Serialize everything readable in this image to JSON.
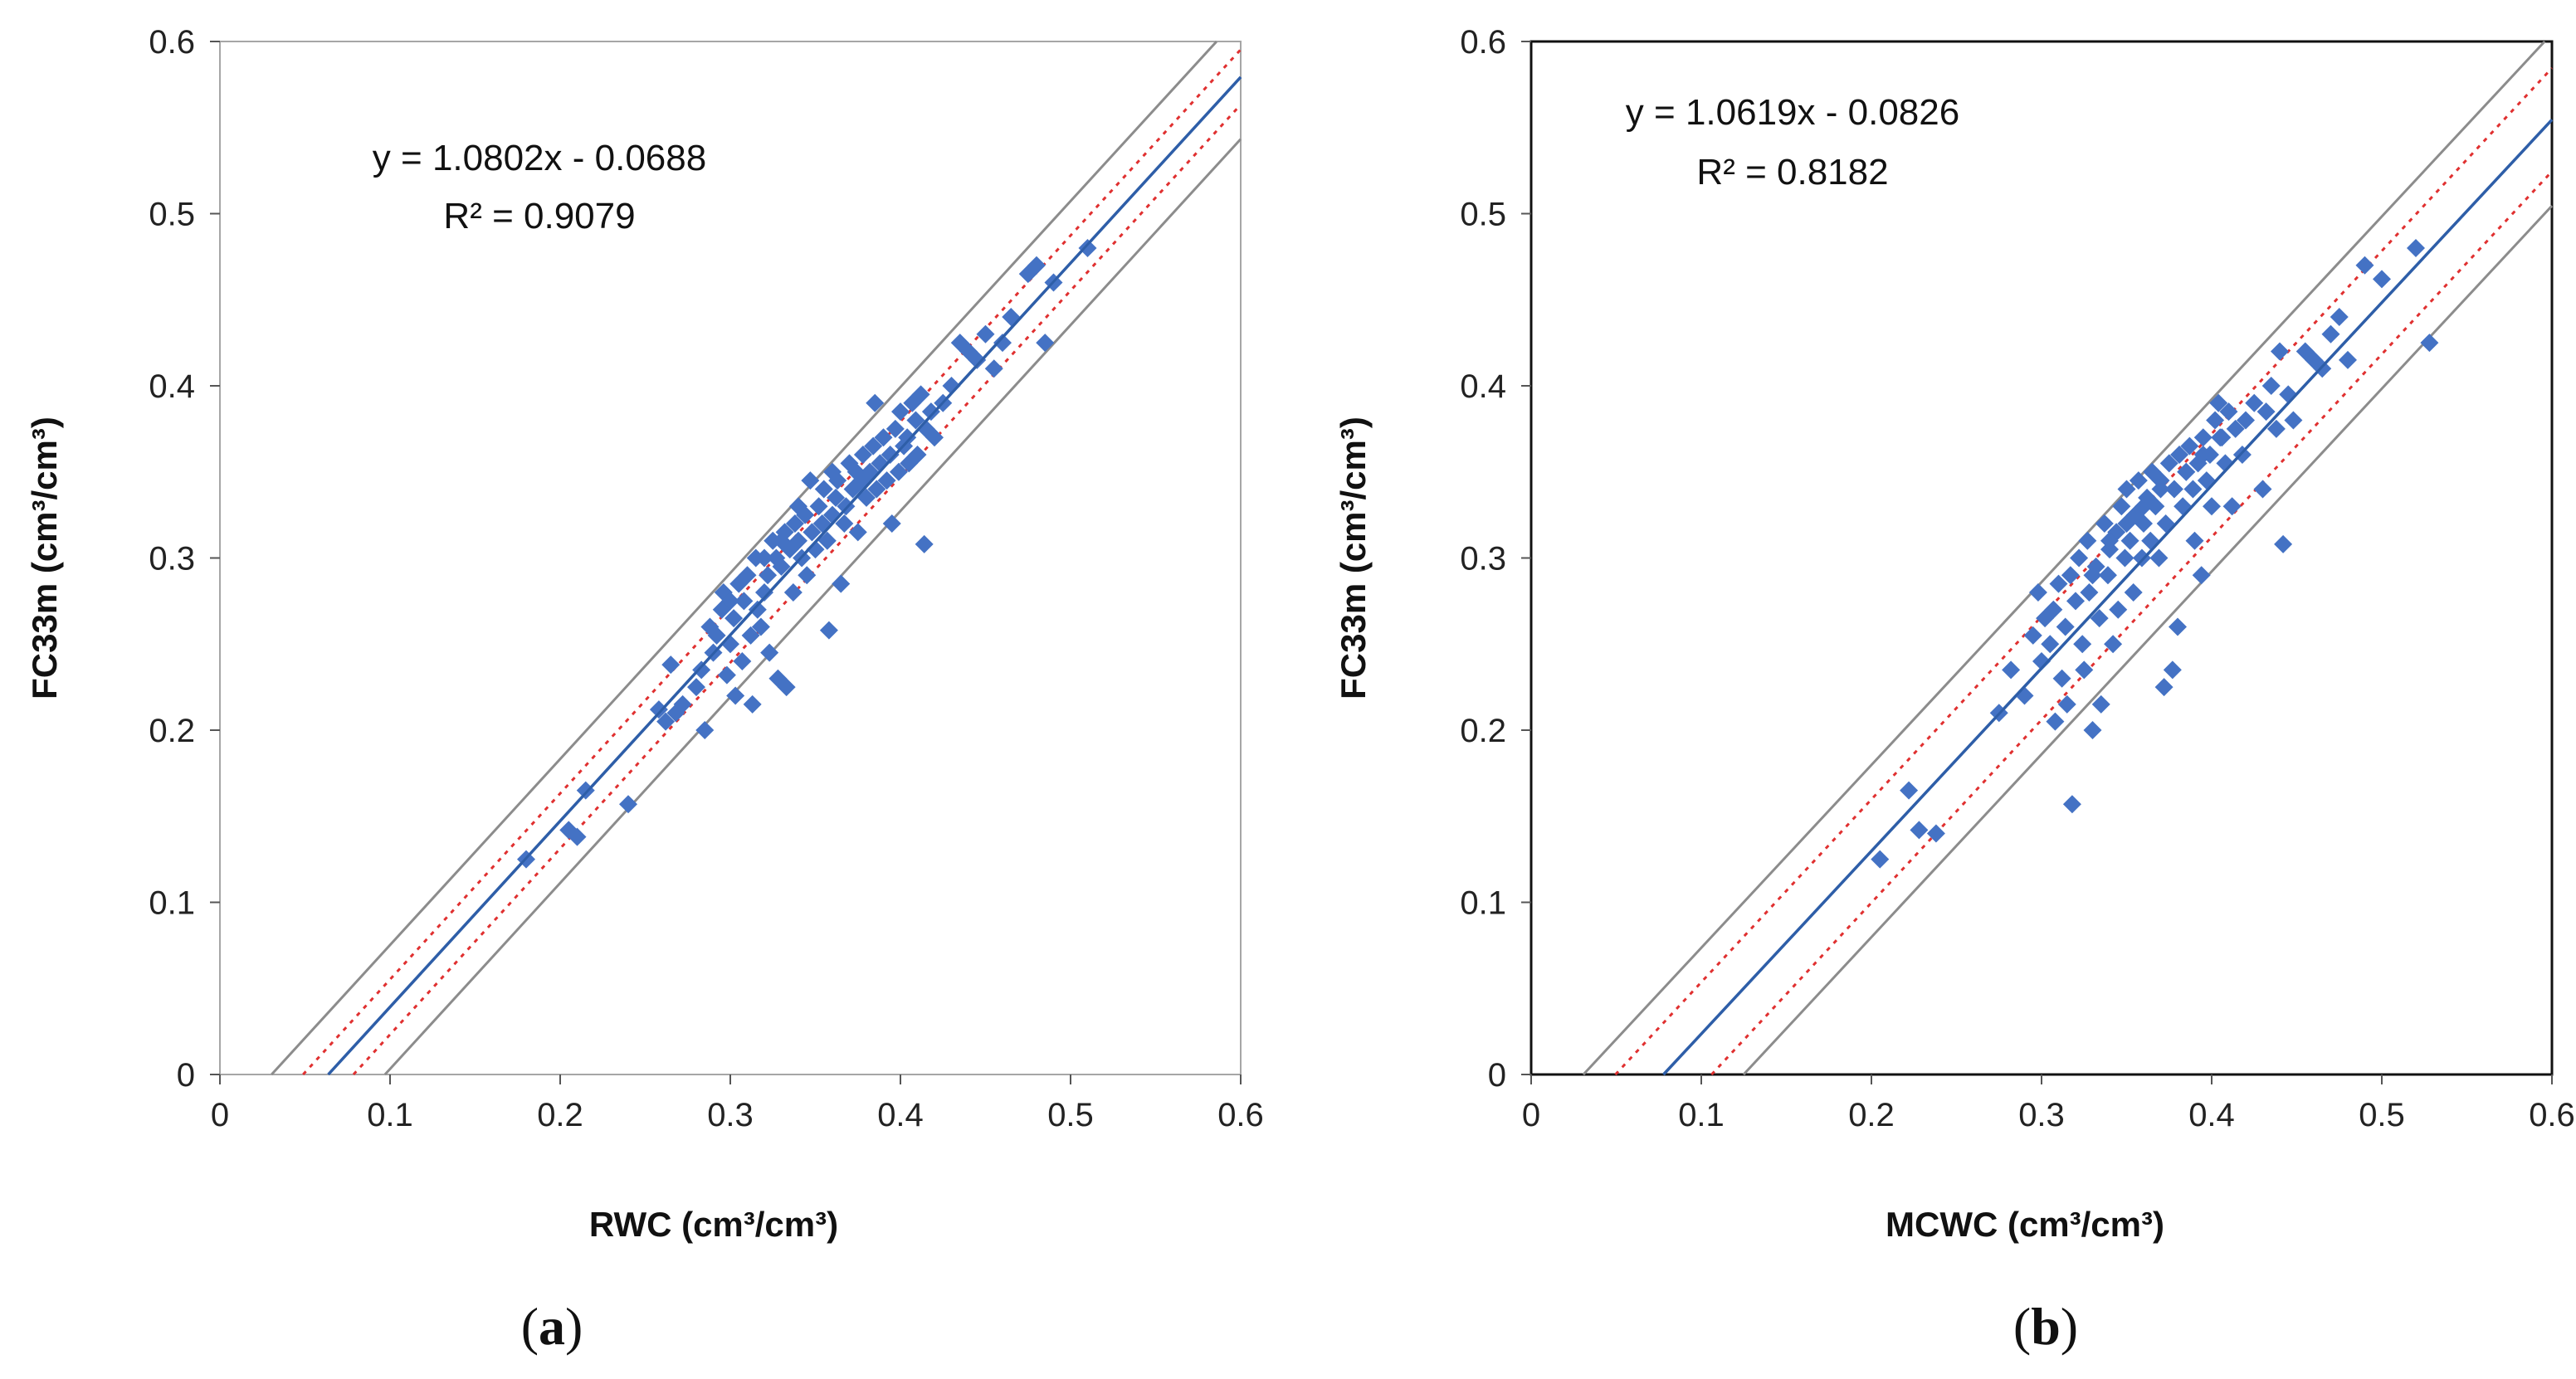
{
  "chart_data": [
    {
      "type": "scatter",
      "panel_label": {
        "open": "(",
        "letter": "a",
        "close": ")"
      },
      "xlabel": "RWC (cm³/cm³)",
      "ylabel": "FC33m (cm³/cm³)",
      "xlim": [
        0,
        0.6
      ],
      "ylim": [
        0,
        0.6
      ],
      "xticks": [
        "0",
        "0.1",
        "0.2",
        "0.3",
        "0.4",
        "0.5",
        "0.6"
      ],
      "yticks": [
        "0",
        "0.1",
        "0.2",
        "0.3",
        "0.4",
        "0.5",
        "0.6"
      ],
      "equation": "y = 1.0802x - 0.0688",
      "r_squared": "R² = 0.9079",
      "fit": {
        "slope": 1.0802,
        "intercept": -0.0688
      },
      "prediction_offset": 0.036,
      "confidence_offset": [
        0.016,
        0.004
      ],
      "series_color": "#4472C4",
      "fit_color": "#2E5EA8",
      "conf_color": "#E03030",
      "pred_color": "#8C8C8C",
      "frame_color": "#A6A6A6",
      "points": [
        [
          0.18,
          0.125
        ],
        [
          0.205,
          0.142
        ],
        [
          0.21,
          0.138
        ],
        [
          0.215,
          0.165
        ],
        [
          0.24,
          0.157
        ],
        [
          0.258,
          0.212
        ],
        [
          0.262,
          0.205
        ],
        [
          0.265,
          0.238
        ],
        [
          0.268,
          0.21
        ],
        [
          0.272,
          0.215
        ],
        [
          0.28,
          0.225
        ],
        [
          0.283,
          0.235
        ],
        [
          0.285,
          0.2
        ],
        [
          0.288,
          0.26
        ],
        [
          0.29,
          0.245
        ],
        [
          0.292,
          0.255
        ],
        [
          0.295,
          0.27
        ],
        [
          0.296,
          0.28
        ],
        [
          0.298,
          0.232
        ],
        [
          0.3,
          0.25
        ],
        [
          0.302,
          0.265
        ],
        [
          0.303,
          0.22
        ],
        [
          0.305,
          0.285
        ],
        [
          0.307,
          0.24
        ],
        [
          0.308,
          0.275
        ],
        [
          0.31,
          0.29
        ],
        [
          0.312,
          0.255
        ],
        [
          0.313,
          0.215
        ],
        [
          0.315,
          0.3
        ],
        [
          0.316,
          0.27
        ],
        [
          0.318,
          0.26
        ],
        [
          0.32,
          0.28
        ],
        [
          0.322,
          0.29
        ],
        [
          0.323,
          0.245
        ],
        [
          0.325,
          0.31
        ],
        [
          0.327,
          0.3
        ],
        [
          0.328,
          0.23
        ],
        [
          0.33,
          0.295
        ],
        [
          0.332,
          0.315
        ],
        [
          0.333,
          0.225
        ],
        [
          0.335,
          0.305
        ],
        [
          0.337,
          0.28
        ],
        [
          0.338,
          0.32
        ],
        [
          0.34,
          0.31
        ],
        [
          0.342,
          0.3
        ],
        [
          0.344,
          0.325
        ],
        [
          0.345,
          0.29
        ],
        [
          0.347,
          0.345
        ],
        [
          0.348,
          0.315
        ],
        [
          0.35,
          0.305
        ],
        [
          0.352,
          0.33
        ],
        [
          0.354,
          0.32
        ],
        [
          0.355,
          0.34
        ],
        [
          0.357,
          0.31
        ],
        [
          0.358,
          0.258
        ],
        [
          0.36,
          0.325
        ],
        [
          0.362,
          0.335
        ],
        [
          0.363,
          0.345
        ],
        [
          0.365,
          0.285
        ],
        [
          0.367,
          0.32
        ],
        [
          0.368,
          0.33
        ],
        [
          0.37,
          0.355
        ],
        [
          0.372,
          0.34
        ],
        [
          0.374,
          0.35
        ],
        [
          0.375,
          0.315
        ],
        [
          0.377,
          0.345
        ],
        [
          0.378,
          0.36
        ],
        [
          0.38,
          0.335
        ],
        [
          0.382,
          0.35
        ],
        [
          0.384,
          0.365
        ],
        [
          0.386,
          0.34
        ],
        [
          0.388,
          0.355
        ],
        [
          0.39,
          0.37
        ],
        [
          0.392,
          0.345
        ],
        [
          0.394,
          0.36
        ],
        [
          0.395,
          0.32
        ],
        [
          0.397,
          0.375
        ],
        [
          0.399,
          0.35
        ],
        [
          0.4,
          0.385
        ],
        [
          0.402,
          0.365
        ],
        [
          0.404,
          0.37
        ],
        [
          0.405,
          0.355
        ],
        [
          0.407,
          0.39
        ],
        [
          0.409,
          0.38
        ],
        [
          0.41,
          0.36
        ],
        [
          0.412,
          0.395
        ],
        [
          0.414,
          0.308
        ],
        [
          0.415,
          0.375
        ],
        [
          0.418,
          0.385
        ],
        [
          0.42,
          0.37
        ],
        [
          0.425,
          0.39
        ],
        [
          0.43,
          0.4
        ],
        [
          0.435,
          0.425
        ],
        [
          0.44,
          0.42
        ],
        [
          0.445,
          0.415
        ],
        [
          0.45,
          0.43
        ],
        [
          0.455,
          0.41
        ],
        [
          0.46,
          0.425
        ],
        [
          0.465,
          0.44
        ],
        [
          0.475,
          0.465
        ],
        [
          0.48,
          0.47
        ],
        [
          0.485,
          0.425
        ],
        [
          0.49,
          0.46
        ],
        [
          0.51,
          0.48
        ],
        [
          0.385,
          0.39
        ],
        [
          0.36,
          0.35
        ],
        [
          0.34,
          0.33
        ],
        [
          0.32,
          0.3
        ],
        [
          0.3,
          0.275
        ],
        [
          0.33,
          0.31
        ]
      ]
    },
    {
      "type": "scatter",
      "panel_label": {
        "open": "(",
        "letter": "b",
        "close": ")"
      },
      "xlabel": "MCWC (cm³/cm³)",
      "ylabel": "FC33m (cm³/cm³)",
      "xlim": [
        0,
        0.6
      ],
      "ylim": [
        0,
        0.6
      ],
      "xticks": [
        "0",
        "0.1",
        "0.2",
        "0.3",
        "0.4",
        "0.5",
        "0.6"
      ],
      "yticks": [
        "0",
        "0.1",
        "0.2",
        "0.3",
        "0.4",
        "0.5",
        "0.6"
      ],
      "equation": "y = 1.0619x - 0.0826",
      "r_squared": "R² = 0.8182",
      "fit": {
        "slope": 1.0619,
        "intercept": -0.0826
      },
      "prediction_offset": 0.05,
      "confidence_offset": [
        0.03,
        0.02
      ],
      "series_color": "#4472C4",
      "fit_color": "#2E5EA8",
      "conf_color": "#E03030",
      "pred_color": "#8C8C8C",
      "frame_color": "#111111",
      "points": [
        [
          0.205,
          0.125
        ],
        [
          0.222,
          0.165
        ],
        [
          0.228,
          0.142
        ],
        [
          0.238,
          0.14
        ],
        [
          0.275,
          0.21
        ],
        [
          0.282,
          0.235
        ],
        [
          0.29,
          0.22
        ],
        [
          0.295,
          0.255
        ],
        [
          0.298,
          0.28
        ],
        [
          0.3,
          0.24
        ],
        [
          0.302,
          0.265
        ],
        [
          0.305,
          0.25
        ],
        [
          0.307,
          0.27
        ],
        [
          0.308,
          0.205
        ],
        [
          0.31,
          0.285
        ],
        [
          0.312,
          0.23
        ],
        [
          0.314,
          0.26
        ],
        [
          0.315,
          0.215
        ],
        [
          0.317,
          0.29
        ],
        [
          0.318,
          0.157
        ],
        [
          0.32,
          0.275
        ],
        [
          0.322,
          0.3
        ],
        [
          0.324,
          0.25
        ],
        [
          0.325,
          0.235
        ],
        [
          0.327,
          0.31
        ],
        [
          0.328,
          0.28
        ],
        [
          0.33,
          0.2
        ],
        [
          0.332,
          0.295
        ],
        [
          0.334,
          0.265
        ],
        [
          0.335,
          0.215
        ],
        [
          0.337,
          0.32
        ],
        [
          0.339,
          0.29
        ],
        [
          0.34,
          0.305
        ],
        [
          0.342,
          0.25
        ],
        [
          0.344,
          0.315
        ],
        [
          0.345,
          0.27
        ],
        [
          0.347,
          0.33
        ],
        [
          0.349,
          0.3
        ],
        [
          0.35,
          0.34
        ],
        [
          0.352,
          0.31
        ],
        [
          0.354,
          0.28
        ],
        [
          0.355,
          0.325
        ],
        [
          0.357,
          0.345
        ],
        [
          0.359,
          0.3
        ],
        [
          0.36,
          0.32
        ],
        [
          0.362,
          0.335
        ],
        [
          0.364,
          0.31
        ],
        [
          0.365,
          0.35
        ],
        [
          0.367,
          0.33
        ],
        [
          0.369,
          0.3
        ],
        [
          0.37,
          0.345
        ],
        [
          0.372,
          0.225
        ],
        [
          0.373,
          0.32
        ],
        [
          0.375,
          0.355
        ],
        [
          0.377,
          0.235
        ],
        [
          0.378,
          0.34
        ],
        [
          0.38,
          0.26
        ],
        [
          0.381,
          0.36
        ],
        [
          0.383,
          0.33
        ],
        [
          0.385,
          0.35
        ],
        [
          0.387,
          0.365
        ],
        [
          0.389,
          0.34
        ],
        [
          0.39,
          0.31
        ],
        [
          0.392,
          0.355
        ],
        [
          0.394,
          0.29
        ],
        [
          0.395,
          0.37
        ],
        [
          0.397,
          0.345
        ],
        [
          0.399,
          0.36
        ],
        [
          0.4,
          0.33
        ],
        [
          0.402,
          0.38
        ],
        [
          0.404,
          0.39
        ],
        [
          0.406,
          0.37
        ],
        [
          0.408,
          0.355
        ],
        [
          0.41,
          0.385
        ],
        [
          0.412,
          0.33
        ],
        [
          0.414,
          0.375
        ],
        [
          0.418,
          0.36
        ],
        [
          0.42,
          0.38
        ],
        [
          0.425,
          0.39
        ],
        [
          0.43,
          0.34
        ],
        [
          0.432,
          0.385
        ],
        [
          0.435,
          0.4
        ],
        [
          0.438,
          0.375
        ],
        [
          0.44,
          0.42
        ],
        [
          0.442,
          0.308
        ],
        [
          0.445,
          0.395
        ],
        [
          0.448,
          0.38
        ],
        [
          0.455,
          0.42
        ],
        [
          0.46,
          0.415
        ],
        [
          0.465,
          0.41
        ],
        [
          0.47,
          0.43
        ],
        [
          0.475,
          0.44
        ],
        [
          0.48,
          0.415
        ],
        [
          0.49,
          0.47
        ],
        [
          0.5,
          0.462
        ],
        [
          0.52,
          0.48
        ],
        [
          0.528,
          0.425
        ],
        [
          0.385,
          0.35
        ],
        [
          0.37,
          0.34
        ],
        [
          0.36,
          0.33
        ],
        [
          0.35,
          0.32
        ],
        [
          0.34,
          0.31
        ],
        [
          0.33,
          0.29
        ],
        [
          0.395,
          0.36
        ],
        [
          0.405,
          0.37
        ]
      ]
    }
  ]
}
